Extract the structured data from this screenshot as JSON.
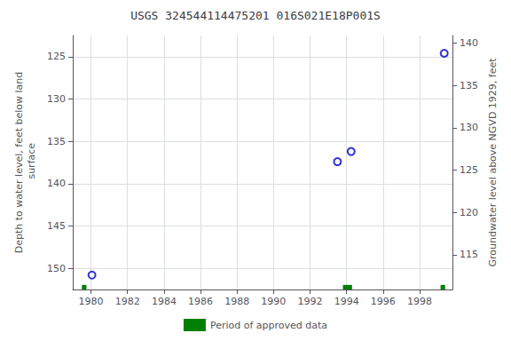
{
  "chart_data": {
    "type": "scatter",
    "title": "USGS 324544114475201 016S021E18P001S",
    "ylabel": "Depth to water level, feet below land\n surface",
    "y2label": "Groundwater level above NGVD 1929, feet",
    "xlim": [
      1979.0,
      1999.8
    ],
    "xticks": [
      1980,
      1982,
      1984,
      1986,
      1988,
      1990,
      1992,
      1994,
      1996,
      1998
    ],
    "ylim": [
      152.5,
      122.5
    ],
    "yticks": [
      125,
      130,
      135,
      140,
      145,
      150
    ],
    "y2lim": [
      110.9,
      140.9
    ],
    "y2ticks": [
      115,
      120,
      125,
      130,
      135,
      140
    ],
    "grid": true,
    "legend": "bottom",
    "series": [
      {
        "type": "scatter",
        "color": "#0000cc",
        "marker": "open_circle",
        "x": [
          1980.05,
          1993.5,
          1994.25,
          1999.35
        ],
        "values": [
          150.8,
          137.4,
          136.2,
          124.6
        ]
      },
      {
        "name": "Period of approved data",
        "type": "period",
        "color": "#008000",
        "x": [
          1979.5,
          1993.8,
          1999.15
        ],
        "widths": [
          0.25,
          0.5,
          0.25
        ]
      }
    ]
  }
}
